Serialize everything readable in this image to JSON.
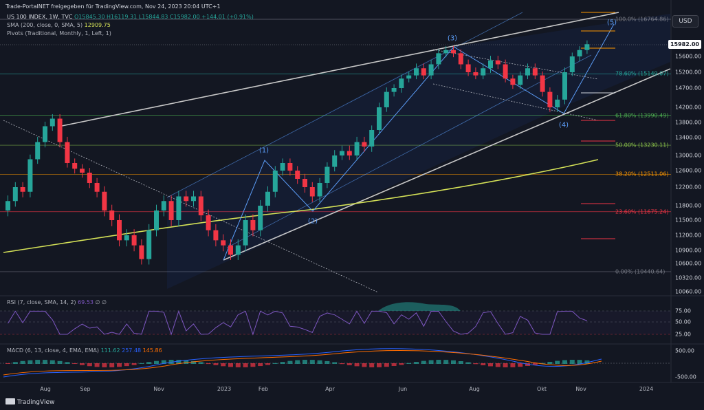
{
  "attribution": "Trade-PortalNET freigegeben für TradingView.com, Nov 24, 2023 20:04 UTC+1",
  "symbol_line": {
    "title": "US 100 INDEX, 1W, TVC",
    "open": "O15845.30",
    "high": "H16119.31",
    "low": "L15844.83",
    "close": "C15982.00",
    "change": "+144.01 (+0.91%)"
  },
  "sma_line": {
    "label": "SMA (200, close, 0, SMA, 5)",
    "value": "12909.75"
  },
  "pivots_line": {
    "label": "Pivots (Traditional, Monthly, 1, Left, 1)"
  },
  "currency_button": "USD",
  "last_price": "15982.00",
  "price_axis": [
    "15600.00",
    "15200.00",
    "14700.00",
    "14200.00",
    "13800.00",
    "13400.00",
    "13000.00",
    "12600.00",
    "12200.00",
    "11800.00",
    "11500.00",
    "11200.00",
    "10900.00",
    "10600.00",
    "10320.00",
    "10060.00"
  ],
  "fib_levels": [
    {
      "label": "100.0% (16764.86)",
      "color": "#787b86"
    },
    {
      "label": "78.60% (15149.07)",
      "color": "#26a69a"
    },
    {
      "label": "61.80% (13990.49)",
      "color": "#4caf50"
    },
    {
      "label": "50.00% (13230.11)",
      "color": "#8bc34a"
    },
    {
      "label": "38.20% (12511.06)",
      "color": "#ff9800"
    },
    {
      "label": "23.60% (11675.24)",
      "color": "#f23645"
    },
    {
      "label": "0.00% (10440.64)",
      "color": "#787b86"
    }
  ],
  "wave_labels": [
    "(1)",
    "(2)",
    "(3)",
    "(4)",
    "(5)"
  ],
  "rsi": {
    "title": "RSI (7, close, SMA, 14, 2)",
    "value": "69.53",
    "extra": "∅ ∅",
    "ticks": [
      "75.00",
      "50.00",
      "25.00"
    ]
  },
  "macd": {
    "title": "MACD (6, 13, close, 4, EMA, EMA)",
    "v1": "111.62",
    "v2": "257.48",
    "v3": "145.86",
    "ticks": [
      "500.00",
      "-500.00"
    ]
  },
  "time_axis": [
    "Aug",
    "Sep",
    "Nov",
    "2023",
    "Feb",
    "Apr",
    "Jun",
    "Aug",
    "Okt",
    "Nov",
    "2024"
  ],
  "logo": "TradingView",
  "colors": {
    "up": "#26a69a",
    "down": "#f23645",
    "sma": "#d4e157",
    "wave": "#5b9cf6",
    "rsi": "#7e57c2",
    "macd": "#2962ff",
    "signal": "#ff6d00"
  },
  "chart_data": {
    "type": "candlestick",
    "symbol": "US 100 INDEX",
    "interval": "1W",
    "last_close": 15982.0,
    "sma200_last": 12909.75,
    "weekly_closes": [
      11900,
      12200,
      12100,
      12900,
      13300,
      13700,
      13900,
      13300,
      12800,
      12650,
      12550,
      12300,
      12100,
      11700,
      11500,
      11100,
      11200,
      11000,
      10700,
      11300,
      11700,
      11900,
      11500,
      12000,
      11900,
      12000,
      11600,
      11300,
      11100,
      11000,
      10800,
      11000,
      11500,
      11300,
      11800,
      12100,
      12600,
      12800,
      12600,
      12400,
      12200,
      12000,
      12300,
      12700,
      13000,
      13100,
      13000,
      13300,
      13200,
      13600,
      14200,
      14600,
      14700,
      15000,
      15100,
      15300,
      15100,
      15400,
      15700,
      15800,
      15700,
      15400,
      15200,
      15100,
      15300,
      15500,
      15400,
      15000,
      14800,
      15100,
      15300,
      15100,
      14600,
      14200,
      14400,
      15200,
      15600,
      15800,
      15982
    ],
    "fib_levels": [
      16764.86,
      15149.07,
      13990.49,
      13230.11,
      12511.06,
      11675.24,
      10440.64
    ],
    "rsi_last": 69.53,
    "macd_last": {
      "macd": 111.62,
      "signal": 257.48,
      "hist": 145.86
    }
  }
}
